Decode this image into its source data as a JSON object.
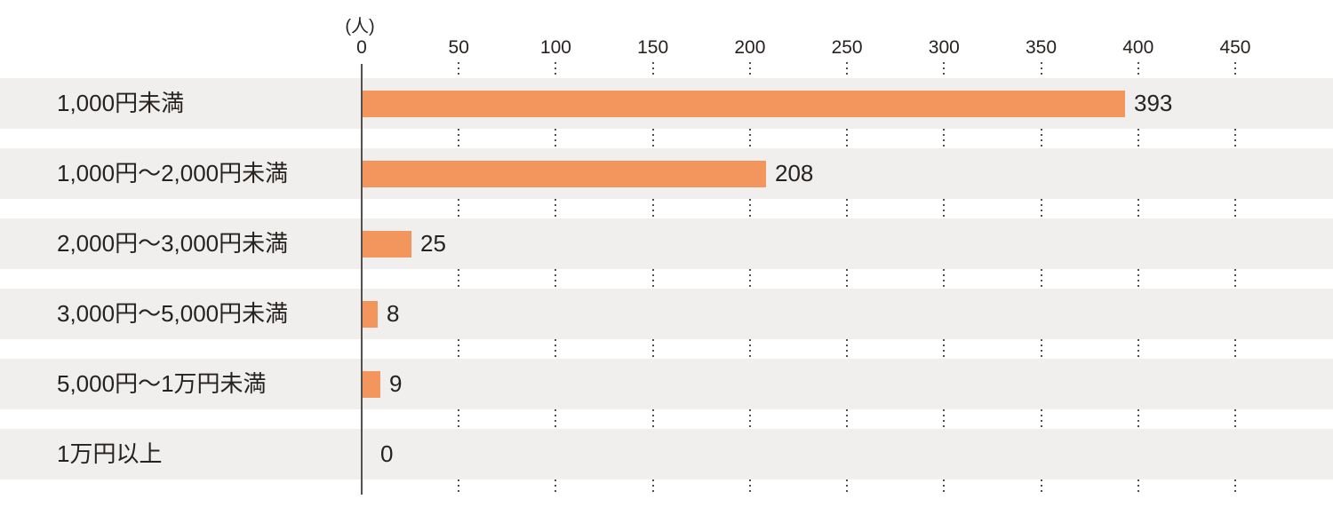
{
  "chart_data": {
    "type": "bar",
    "orientation": "horizontal",
    "title": "",
    "unit_label": "(人)",
    "categories": [
      "1,000円未満",
      "1,000円〜2,000円未満",
      "2,000円〜3,000円未満",
      "3,000円〜5,000円未満",
      "5,000円〜1万円未満",
      "1万円以上"
    ],
    "values": [
      393,
      208,
      25,
      8,
      9,
      0
    ],
    "x_ticks": [
      0,
      50,
      100,
      150,
      200,
      250,
      300,
      350,
      400,
      450
    ],
    "xlim": [
      0,
      450
    ],
    "xlabel": "",
    "ylabel": "",
    "grid": "vertical-dotted-in-row-gaps",
    "legend": "none",
    "colors": {
      "bar": "#F2965E",
      "row_background": "#F0EFED",
      "axis_line": "#55504B",
      "grid_dots": "#55504B",
      "text": "#262220",
      "background": "#FFFFFF"
    }
  }
}
